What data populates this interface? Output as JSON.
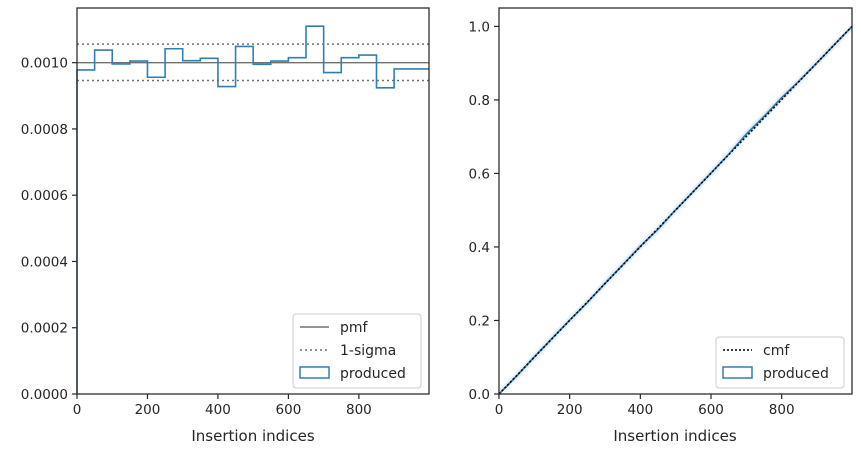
{
  "chart_data": [
    {
      "type": "histogram",
      "xlabel": "Insertion indices",
      "ylabel": "",
      "xlim": [
        0,
        999
      ],
      "ylim": [
        0,
        0.001165
      ],
      "xticks": [
        0,
        200,
        400,
        600,
        800
      ],
      "xtick_labels": [
        "0",
        "200",
        "400",
        "600",
        "800"
      ],
      "yticks": [
        0,
        0.0002,
        0.0004,
        0.0006,
        0.0008,
        0.001
      ],
      "ytick_labels": [
        "0.0000",
        "0.0002",
        "0.0004",
        "0.0006",
        "0.0008",
        "0.0010"
      ],
      "grid": false,
      "legend_position": "lower-right",
      "bin_edges": [
        0,
        50,
        100,
        150,
        200,
        250,
        300,
        350,
        400,
        450,
        500,
        550,
        600,
        650,
        700,
        750,
        800,
        850,
        900,
        950,
        1000
      ],
      "produced": [
        0.000978,
        0.001038,
        0.000996,
        0.001005,
        0.000956,
        0.001042,
        0.001006,
        0.001013,
        0.000928,
        0.001049,
        0.000995,
        0.001005,
        0.001015,
        0.00111,
        0.00097,
        0.001015,
        0.001023,
        0.000924,
        0.000981,
        0.000981
      ],
      "pmf": 0.001,
      "sigma_lower": 0.000946,
      "sigma_upper": 0.001056,
      "legend": [
        {
          "label": "pmf",
          "style": "solid-gray"
        },
        {
          "label": "1-sigma",
          "style": "dotted-gray"
        },
        {
          "label": "produced",
          "style": "blue-box"
        }
      ]
    },
    {
      "type": "line",
      "xlabel": "Insertion indices",
      "ylabel": "",
      "xlim": [
        0,
        999
      ],
      "ylim": [
        0,
        1.05
      ],
      "xticks": [
        0,
        200,
        400,
        600,
        800
      ],
      "xtick_labels": [
        "0",
        "200",
        "400",
        "600",
        "800"
      ],
      "yticks": [
        0,
        0.2,
        0.4,
        0.6,
        0.8,
        1.0
      ],
      "ytick_labels": [
        "0.0",
        "0.2",
        "0.4",
        "0.6",
        "0.8",
        "1.0"
      ],
      "grid": false,
      "legend_position": "lower-right",
      "cmf": {
        "x": [
          0,
          999
        ],
        "y": [
          0,
          1.0
        ]
      },
      "produced": {
        "x": [
          0,
          50,
          100,
          150,
          200,
          250,
          300,
          350,
          400,
          450,
          500,
          550,
          600,
          650,
          700,
          750,
          800,
          850,
          900,
          950,
          999
        ],
        "y": [
          0,
          0.049,
          0.101,
          0.151,
          0.201,
          0.249,
          0.301,
          0.351,
          0.402,
          0.448,
          0.501,
          0.551,
          0.601,
          0.652,
          0.707,
          0.755,
          0.806,
          0.852,
          0.901,
          0.951,
          1.0
        ]
      },
      "legend": [
        {
          "label": "cmf",
          "style": "dotted-black"
        },
        {
          "label": "produced",
          "style": "blue-box"
        }
      ]
    }
  ],
  "colors": {
    "produced": "#2f7fb5",
    "pmf": "#707070",
    "sigma": "#707070",
    "cmf": "#000000",
    "axes": "#262626",
    "band": "#d9e3ec"
  }
}
